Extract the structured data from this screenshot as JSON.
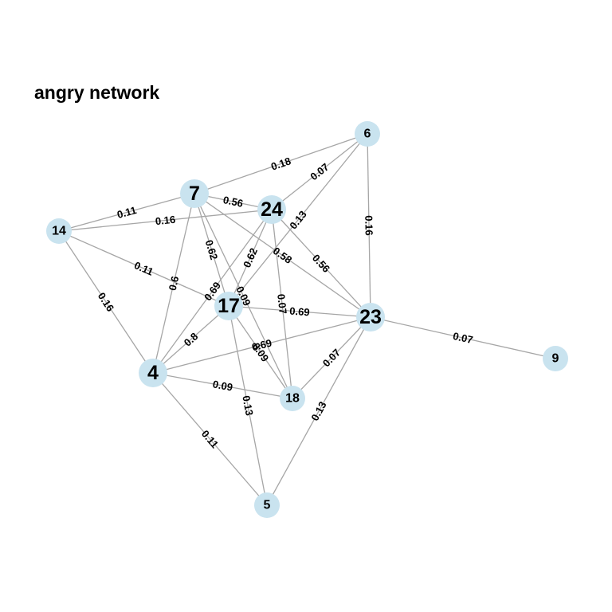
{
  "title": "angry network",
  "colors": {
    "node_fill": "#c9e3ef",
    "edge_stroke": "#a6a6a6",
    "text": "#000000"
  },
  "nodes": [
    {
      "id": "6",
      "label": "6",
      "size": "small"
    },
    {
      "id": "7",
      "label": "7",
      "size": "large"
    },
    {
      "id": "24",
      "label": "24",
      "size": "large"
    },
    {
      "id": "14",
      "label": "14",
      "size": "small"
    },
    {
      "id": "17",
      "label": "17",
      "size": "large"
    },
    {
      "id": "23",
      "label": "23",
      "size": "large"
    },
    {
      "id": "9",
      "label": "9",
      "size": "small"
    },
    {
      "id": "4",
      "label": "4",
      "size": "large"
    },
    {
      "id": "18",
      "label": "18",
      "size": "small"
    },
    {
      "id": "5",
      "label": "5",
      "size": "small"
    }
  ],
  "edges": [
    {
      "source": "7",
      "target": "6",
      "weight": "0.18"
    },
    {
      "source": "24",
      "target": "6",
      "weight": "0.07"
    },
    {
      "source": "17",
      "target": "6",
      "weight": "0.13"
    },
    {
      "source": "6",
      "target": "23",
      "weight": "0.16"
    },
    {
      "source": "14",
      "target": "7",
      "weight": "0.11"
    },
    {
      "source": "14",
      "target": "24",
      "weight": "0.16"
    },
    {
      "source": "7",
      "target": "24",
      "weight": "0.56"
    },
    {
      "source": "14",
      "target": "17",
      "weight": "0.11"
    },
    {
      "source": "14",
      "target": "4",
      "weight": "0.16"
    },
    {
      "source": "7",
      "target": "17",
      "weight": "0.62"
    },
    {
      "source": "7",
      "target": "4",
      "weight": "0.6"
    },
    {
      "source": "7",
      "target": "23",
      "weight": "0.58"
    },
    {
      "source": "7",
      "target": "18",
      "weight": "0.09"
    },
    {
      "source": "24",
      "target": "17",
      "weight": "0.62"
    },
    {
      "source": "24",
      "target": "4",
      "weight": "0.69"
    },
    {
      "source": "24",
      "target": "23",
      "weight": "0.56"
    },
    {
      "source": "24",
      "target": "18",
      "weight": "0.07"
    },
    {
      "source": "17",
      "target": "23",
      "weight": "0.69"
    },
    {
      "source": "17",
      "target": "4",
      "weight": "0.8"
    },
    {
      "source": "17",
      "target": "18",
      "weight": "0.09"
    },
    {
      "source": "17",
      "target": "5",
      "weight": "0.13"
    },
    {
      "source": "4",
      "target": "23",
      "weight": "0.69"
    },
    {
      "source": "23",
      "target": "18",
      "weight": "0.07"
    },
    {
      "source": "23",
      "target": "5",
      "weight": "0.13"
    },
    {
      "source": "23",
      "target": "9",
      "weight": "0.07"
    },
    {
      "source": "4",
      "target": "18",
      "weight": "0.09"
    },
    {
      "source": "4",
      "target": "5",
      "weight": "0.11"
    }
  ]
}
